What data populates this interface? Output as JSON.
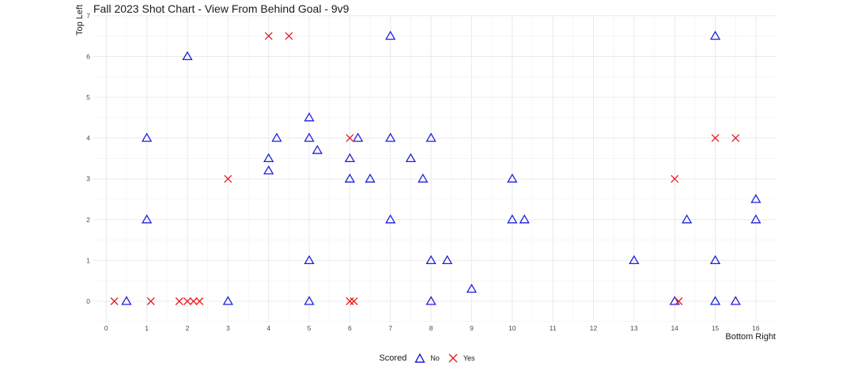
{
  "chart_data": {
    "type": "scatter",
    "title": "Fall 2023 Shot Chart - View From Behind Goal - 9v9",
    "xlabel": "Bottom Right",
    "ylabel": "Top Left",
    "xlim": [
      -0.3,
      16.5
    ],
    "ylim": [
      -0.5,
      7
    ],
    "x_ticks": [
      0,
      1,
      2,
      3,
      4,
      5,
      6,
      7,
      8,
      9,
      10,
      11,
      12,
      13,
      14,
      15,
      16
    ],
    "y_ticks": [
      0,
      1,
      2,
      3,
      4,
      5,
      6,
      7
    ],
    "grid": true,
    "legend_position": "bottom",
    "legend_title": "Scored",
    "series": [
      {
        "name": "No",
        "marker": "triangle-open",
        "color": "#1f1fe0",
        "points": [
          [
            0.5,
            0
          ],
          [
            1,
            4
          ],
          [
            1,
            2
          ],
          [
            2,
            6
          ],
          [
            3,
            0
          ],
          [
            4,
            3.5
          ],
          [
            4,
            3.2
          ],
          [
            4.2,
            4
          ],
          [
            5,
            4.5
          ],
          [
            5,
            4
          ],
          [
            5.2,
            3.7
          ],
          [
            5,
            1
          ],
          [
            5,
            0
          ],
          [
            6,
            3.5
          ],
          [
            6,
            3
          ],
          [
            6.2,
            4
          ],
          [
            6.5,
            3
          ],
          [
            7,
            6.5
          ],
          [
            7,
            4
          ],
          [
            7,
            2
          ],
          [
            7.5,
            3.5
          ],
          [
            7.8,
            3
          ],
          [
            8,
            4
          ],
          [
            8,
            1
          ],
          [
            8.4,
            1
          ],
          [
            8,
            0
          ],
          [
            9,
            0.3
          ],
          [
            10,
            3
          ],
          [
            10,
            2
          ],
          [
            10.3,
            2
          ],
          [
            13,
            1
          ],
          [
            14,
            0
          ],
          [
            14.3,
            2
          ],
          [
            15,
            6.5
          ],
          [
            15,
            1
          ],
          [
            15,
            0
          ],
          [
            15.5,
            0
          ],
          [
            16,
            2.5
          ],
          [
            16,
            2
          ]
        ]
      },
      {
        "name": "Yes",
        "marker": "x",
        "color": "#e8191e",
        "points": [
          [
            0.2,
            0
          ],
          [
            1.1,
            0
          ],
          [
            1.8,
            0
          ],
          [
            2.0,
            0
          ],
          [
            2.15,
            0
          ],
          [
            2.3,
            0
          ],
          [
            3,
            3
          ],
          [
            4,
            6.5
          ],
          [
            4.5,
            6.5
          ],
          [
            6,
            4
          ],
          [
            6,
            0
          ],
          [
            6.1,
            0
          ],
          [
            14,
            3
          ],
          [
            14.1,
            0
          ],
          [
            15,
            4
          ],
          [
            15.5,
            4
          ]
        ]
      }
    ]
  },
  "legend": {
    "title": "Scored",
    "items": [
      {
        "label": "No"
      },
      {
        "label": "Yes"
      }
    ]
  }
}
